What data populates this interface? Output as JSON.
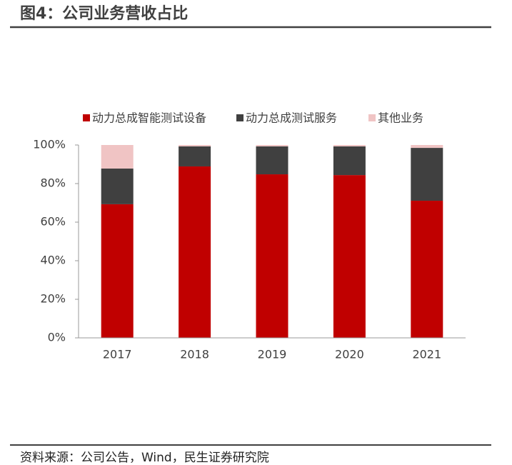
{
  "header": {
    "title": "图4：公司业务营收占比"
  },
  "footer": {
    "source": "资料来源：公司公告，Wind，民生证券研究院"
  },
  "chart_data": {
    "type": "bar",
    "stacked": true,
    "categories": [
      "2017",
      "2018",
      "2019",
      "2020",
      "2021"
    ],
    "series": [
      {
        "name": "动力总成智能测试设备",
        "color": "#c00000",
        "values": [
          69.3,
          88.9,
          84.8,
          84.4,
          71.1
        ]
      },
      {
        "name": "动力总成测试服务",
        "color": "#404040",
        "values": [
          18.5,
          10.4,
          14.5,
          14.9,
          27.4
        ]
      },
      {
        "name": "其他业务",
        "color": "#f0c4c4",
        "values": [
          12.2,
          0.7,
          0.7,
          0.7,
          1.5
        ]
      }
    ],
    "ylim": [
      0,
      100
    ],
    "yticks": [
      {
        "value": 0,
        "label": "0%"
      },
      {
        "value": 20,
        "label": "20%"
      },
      {
        "value": 40,
        "label": "40%"
      },
      {
        "value": 60,
        "label": "60%"
      },
      {
        "value": 80,
        "label": "80%"
      },
      {
        "value": 100,
        "label": "100%"
      }
    ],
    "grid": false,
    "legend": "top"
  }
}
